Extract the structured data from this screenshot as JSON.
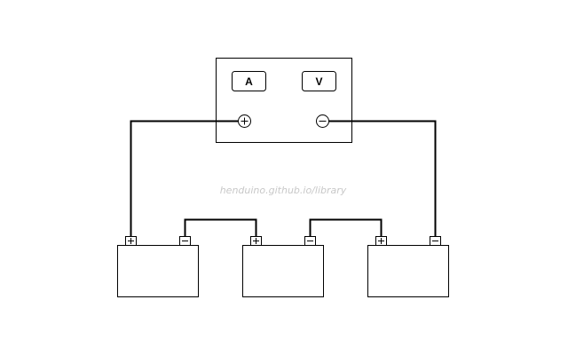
{
  "meter": {
    "ammeter_label": "A",
    "voltmeter_label": "V",
    "positive_symbol": "+",
    "negative_symbol": "−"
  },
  "watermark": "henduino.github.io/library",
  "batteries": [
    {
      "positive_symbol": "+",
      "negative_symbol": "−"
    },
    {
      "positive_symbol": "+",
      "negative_symbol": "−"
    },
    {
      "positive_symbol": "+",
      "negative_symbol": "−"
    }
  ],
  "colors": {
    "wire": "#000000",
    "outline": "#000000",
    "watermark": "#c8c8c8",
    "background": "#ffffff"
  }
}
